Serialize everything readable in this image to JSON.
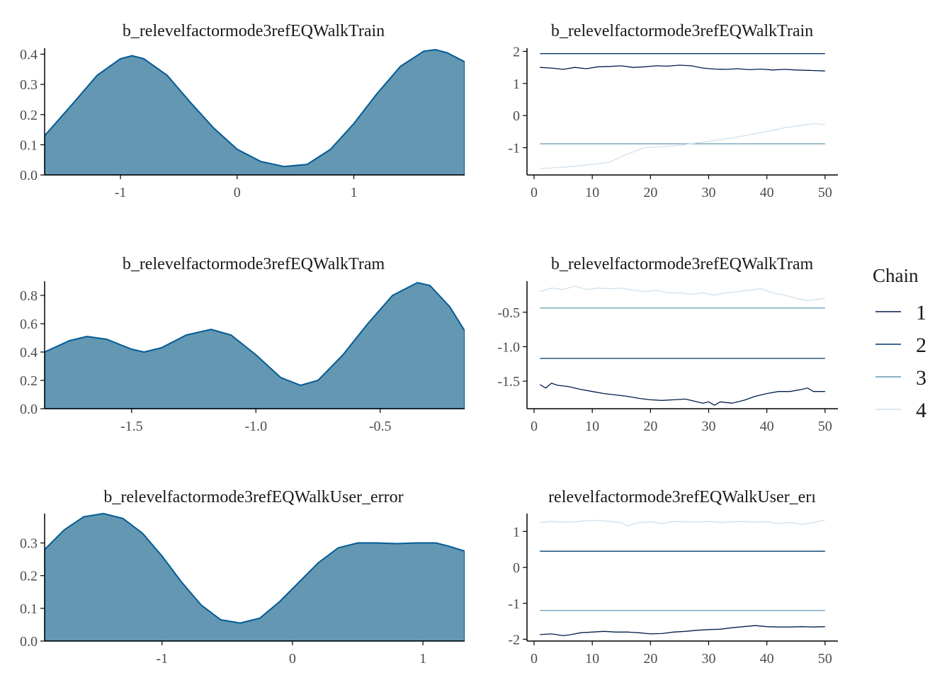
{
  "legend": {
    "title": "Chain",
    "entries": [
      {
        "label": "1",
        "color": "#011f4b"
      },
      {
        "label": "2",
        "color": "#03396c"
      },
      {
        "label": "3",
        "color": "#6497b1"
      },
      {
        "label": "4",
        "color": "#d1e1ec"
      }
    ]
  },
  "chart_data": [
    {
      "type": "area",
      "title": "b_relevelfactormode3refEQWalkTrain",
      "xlim": [
        -1.65,
        1.95
      ],
      "ylim": [
        0,
        0.42
      ],
      "xticks": [
        {
          "v": -1,
          "label": "-1"
        },
        {
          "v": 0,
          "label": "0"
        },
        {
          "v": 1,
          "label": "1"
        }
      ],
      "yticks": [
        {
          "v": 0,
          "label": "0.0"
        },
        {
          "v": 0.1,
          "label": "0.1"
        },
        {
          "v": 0.2,
          "label": "0.2"
        },
        {
          "v": 0.3,
          "label": "0.3"
        },
        {
          "v": 0.4,
          "label": "0.4"
        }
      ],
      "x": [
        -1.65,
        -1.4,
        -1.2,
        -1.0,
        -0.9,
        -0.8,
        -0.6,
        -0.4,
        -0.2,
        0,
        0.2,
        0.4,
        0.6,
        0.8,
        1.0,
        1.2,
        1.4,
        1.6,
        1.7,
        1.8,
        1.95
      ],
      "y": [
        0.13,
        0.24,
        0.33,
        0.385,
        0.395,
        0.385,
        0.33,
        0.24,
        0.155,
        0.085,
        0.045,
        0.028,
        0.035,
        0.085,
        0.17,
        0.27,
        0.36,
        0.41,
        0.415,
        0.405,
        0.375
      ]
    },
    {
      "type": "line",
      "title": "b_relevelfactormode3refEQWalkTrain",
      "xlim": [
        0,
        51
      ],
      "ylim": [
        -1.85,
        2.1
      ],
      "xticks": [
        {
          "v": 0,
          "label": "0"
        },
        {
          "v": 10,
          "label": "10"
        },
        {
          "v": 20,
          "label": "20"
        },
        {
          "v": 30,
          "label": "30"
        },
        {
          "v": 40,
          "label": "40"
        },
        {
          "v": 50,
          "label": "50"
        }
      ],
      "yticks": [
        {
          "v": -1,
          "label": "-1"
        },
        {
          "v": 0,
          "label": "0"
        },
        {
          "v": 1,
          "label": "1"
        },
        {
          "v": 2,
          "label": "2"
        }
      ],
      "series": [
        {
          "name": "1",
          "color": "#011f4b",
          "x": [
            1,
            3,
            5,
            7,
            9,
            11,
            13,
            15,
            17,
            19,
            21,
            23,
            25,
            27,
            29,
            31,
            33,
            35,
            37,
            39,
            41,
            43,
            45,
            47,
            50
          ],
          "y": [
            1.5,
            1.48,
            1.44,
            1.5,
            1.46,
            1.52,
            1.53,
            1.55,
            1.5,
            1.52,
            1.55,
            1.54,
            1.57,
            1.55,
            1.48,
            1.45,
            1.44,
            1.46,
            1.43,
            1.45,
            1.42,
            1.44,
            1.42,
            1.41,
            1.39
          ]
        },
        {
          "name": "2",
          "color": "#03396c",
          "x": [
            1,
            50
          ],
          "y": [
            1.93,
            1.93
          ]
        },
        {
          "name": "3",
          "color": "#6497b1",
          "x": [
            1,
            50
          ],
          "y": [
            -0.88,
            -0.88
          ]
        },
        {
          "name": "4",
          "color": "#d1e1ec",
          "x": [
            1,
            4,
            7,
            10,
            13,
            16,
            19,
            22,
            25,
            28,
            31,
            34,
            37,
            40,
            43,
            46,
            48,
            50
          ],
          "y": [
            -1.65,
            -1.62,
            -1.58,
            -1.52,
            -1.45,
            -1.2,
            -1.0,
            -0.97,
            -0.93,
            -0.85,
            -0.78,
            -0.7,
            -0.6,
            -0.5,
            -0.38,
            -0.3,
            -0.25,
            -0.28
          ]
        }
      ]
    },
    {
      "type": "area",
      "title": "b_relevelfactormode3refEQWalkTram",
      "xlim": [
        -1.85,
        -0.16
      ],
      "ylim": [
        0,
        0.9
      ],
      "xticks": [
        {
          "v": -1.5,
          "label": "-1.5"
        },
        {
          "v": -1.0,
          "label": "-1.0"
        },
        {
          "v": -0.5,
          "label": "-0.5"
        }
      ],
      "yticks": [
        {
          "v": 0,
          "label": "0.0"
        },
        {
          "v": 0.2,
          "label": "0.2"
        },
        {
          "v": 0.4,
          "label": "0.4"
        },
        {
          "v": 0.6,
          "label": "0.6"
        },
        {
          "v": 0.8,
          "label": "0.8"
        }
      ],
      "x": [
        -1.85,
        -1.75,
        -1.68,
        -1.6,
        -1.5,
        -1.45,
        -1.38,
        -1.28,
        -1.18,
        -1.1,
        -1.0,
        -0.9,
        -0.82,
        -0.75,
        -0.65,
        -0.55,
        -0.45,
        -0.35,
        -0.3,
        -0.22,
        -0.16
      ],
      "y": [
        0.4,
        0.48,
        0.51,
        0.49,
        0.42,
        0.4,
        0.43,
        0.52,
        0.56,
        0.52,
        0.38,
        0.22,
        0.165,
        0.2,
        0.38,
        0.6,
        0.8,
        0.89,
        0.87,
        0.72,
        0.55
      ]
    },
    {
      "type": "line",
      "title": "b_relevelfactormode3refEQWalkTram",
      "xlim": [
        0,
        51
      ],
      "ylim": [
        -1.9,
        -0.05
      ],
      "xticks": [
        {
          "v": 0,
          "label": "0"
        },
        {
          "v": 10,
          "label": "10"
        },
        {
          "v": 20,
          "label": "20"
        },
        {
          "v": 30,
          "label": "30"
        },
        {
          "v": 40,
          "label": "40"
        },
        {
          "v": 50,
          "label": "50"
        }
      ],
      "yticks": [
        {
          "v": -1.5,
          "label": "-1.5"
        },
        {
          "v": -1.0,
          "label": "-1.0"
        },
        {
          "v": -0.5,
          "label": "-0.5"
        }
      ],
      "series": [
        {
          "name": "1",
          "color": "#011f4b",
          "x": [
            1,
            2,
            3,
            4,
            6,
            8,
            10,
            12,
            14,
            16,
            18,
            20,
            22,
            24,
            26,
            28,
            29,
            30,
            31,
            32,
            34,
            36,
            38,
            40,
            42,
            44,
            46,
            47,
            48,
            50
          ],
          "y": [
            -1.55,
            -1.6,
            -1.53,
            -1.56,
            -1.58,
            -1.62,
            -1.65,
            -1.68,
            -1.7,
            -1.72,
            -1.75,
            -1.77,
            -1.78,
            -1.77,
            -1.76,
            -1.8,
            -1.82,
            -1.8,
            -1.85,
            -1.8,
            -1.82,
            -1.78,
            -1.72,
            -1.68,
            -1.65,
            -1.65,
            -1.62,
            -1.6,
            -1.65,
            -1.65
          ]
        },
        {
          "name": "2",
          "color": "#03396c",
          "x": [
            1,
            50
          ],
          "y": [
            -1.17,
            -1.17
          ]
        },
        {
          "name": "3",
          "color": "#6497b1",
          "x": [
            1,
            50
          ],
          "y": [
            -0.44,
            -0.44
          ]
        },
        {
          "name": "4",
          "color": "#d1e1ec",
          "x": [
            1,
            3,
            5,
            7,
            9,
            11,
            13,
            15,
            17,
            19,
            21,
            23,
            25,
            27,
            29,
            31,
            33,
            35,
            37,
            39,
            41,
            43,
            45,
            47,
            50
          ],
          "y": [
            -0.2,
            -0.15,
            -0.17,
            -0.12,
            -0.17,
            -0.15,
            -0.16,
            -0.15,
            -0.18,
            -0.2,
            -0.18,
            -0.22,
            -0.22,
            -0.24,
            -0.22,
            -0.25,
            -0.22,
            -0.2,
            -0.18,
            -0.16,
            -0.22,
            -0.25,
            -0.3,
            -0.33,
            -0.3
          ]
        }
      ]
    },
    {
      "type": "area",
      "title": "b_relevelfactormode3refEQWalkUser_error",
      "xlim": [
        -1.9,
        1.32
      ],
      "ylim": [
        0,
        0.39
      ],
      "xticks": [
        {
          "v": -1,
          "label": "-1"
        },
        {
          "v": 0,
          "label": "0"
        },
        {
          "v": 1,
          "label": "1"
        }
      ],
      "yticks": [
        {
          "v": 0,
          "label": "0.0"
        },
        {
          "v": 0.1,
          "label": "0.1"
        },
        {
          "v": 0.2,
          "label": "0.2"
        },
        {
          "v": 0.3,
          "label": "0.3"
        }
      ],
      "x": [
        -1.9,
        -1.75,
        -1.6,
        -1.45,
        -1.3,
        -1.15,
        -1.0,
        -0.85,
        -0.7,
        -0.55,
        -0.4,
        -0.25,
        -0.1,
        0.05,
        0.2,
        0.35,
        0.5,
        0.65,
        0.8,
        0.95,
        1.1,
        1.2,
        1.32
      ],
      "y": [
        0.28,
        0.34,
        0.38,
        0.39,
        0.375,
        0.33,
        0.26,
        0.18,
        0.11,
        0.065,
        0.055,
        0.07,
        0.12,
        0.18,
        0.24,
        0.285,
        0.3,
        0.3,
        0.298,
        0.3,
        0.3,
        0.29,
        0.275
      ]
    },
    {
      "type": "line",
      "title": "relevelfactormode3refEQWalkUser_erı",
      "xlim": [
        0,
        51
      ],
      "ylim": [
        -2.05,
        1.5
      ],
      "xticks": [
        {
          "v": 0,
          "label": "0"
        },
        {
          "v": 10,
          "label": "10"
        },
        {
          "v": 20,
          "label": "20"
        },
        {
          "v": 30,
          "label": "30"
        },
        {
          "v": 40,
          "label": "40"
        },
        {
          "v": 50,
          "label": "50"
        }
      ],
      "yticks": [
        {
          "v": -2,
          "label": "-2"
        },
        {
          "v": -1,
          "label": "-1"
        },
        {
          "v": 0,
          "label": "0"
        },
        {
          "v": 1,
          "label": "1"
        }
      ],
      "series": [
        {
          "name": "1",
          "color": "#011f4b",
          "x": [
            1,
            3,
            5,
            6,
            8,
            10,
            12,
            14,
            16,
            18,
            20,
            22,
            24,
            26,
            28,
            30,
            32,
            34,
            36,
            38,
            40,
            42,
            44,
            46,
            48,
            50
          ],
          "y": [
            -1.87,
            -1.85,
            -1.9,
            -1.88,
            -1.82,
            -1.8,
            -1.78,
            -1.8,
            -1.8,
            -1.82,
            -1.85,
            -1.84,
            -1.8,
            -1.78,
            -1.75,
            -1.73,
            -1.72,
            -1.68,
            -1.65,
            -1.62,
            -1.65,
            -1.66,
            -1.66,
            -1.65,
            -1.66,
            -1.65
          ]
        },
        {
          "name": "2",
          "color": "#03396c",
          "x": [
            1,
            50
          ],
          "y": [
            0.45,
            0.45
          ]
        },
        {
          "name": "3",
          "color": "#6497b1",
          "x": [
            1,
            50
          ],
          "y": [
            -1.2,
            -1.2
          ]
        },
        {
          "name": "4",
          "color": "#d1e1ec",
          "x": [
            1,
            3,
            5,
            7,
            9,
            11,
            13,
            15,
            16,
            18,
            20,
            22,
            24,
            26,
            28,
            30,
            32,
            34,
            36,
            38,
            40,
            42,
            44,
            46,
            48,
            50
          ],
          "y": [
            1.25,
            1.28,
            1.26,
            1.27,
            1.3,
            1.31,
            1.28,
            1.25,
            1.15,
            1.25,
            1.27,
            1.22,
            1.28,
            1.27,
            1.26,
            1.28,
            1.25,
            1.27,
            1.28,
            1.26,
            1.27,
            1.22,
            1.25,
            1.2,
            1.25,
            1.32
          ]
        }
      ]
    }
  ]
}
